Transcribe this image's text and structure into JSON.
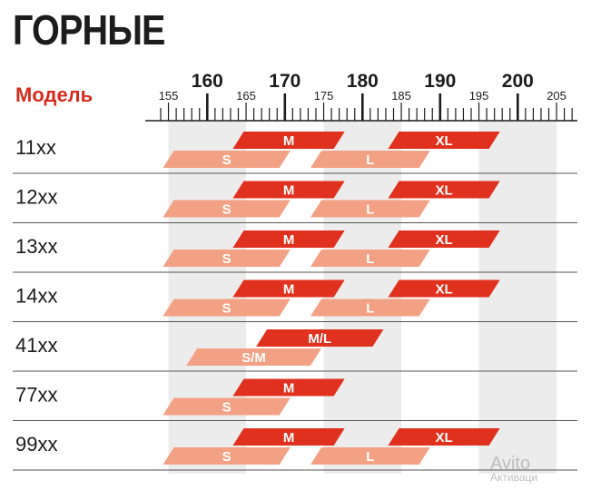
{
  "title": "ГОРНЫЕ",
  "model_header": "Модель",
  "watermark": {
    "brand": "Avito",
    "sub": "Активаци"
  },
  "colors": {
    "primary_bar": "#e0301e",
    "secondary_bar": "#f2a184",
    "band": "#ececec",
    "text": "#1c1c1c",
    "accent": "#d62b1f"
  },
  "chart_data": {
    "type": "range_bar",
    "title": "ГОРНЫЕ",
    "xlabel": "",
    "ylabel": "Модель",
    "xlim": [
      154,
      207
    ],
    "major_ticks": [
      160,
      170,
      180,
      190,
      200
    ],
    "minor_labeled_ticks": [
      155,
      165,
      175,
      185,
      195,
      205
    ],
    "shaded_bands": [
      [
        155,
        165
      ],
      [
        175,
        185
      ],
      [
        195,
        205
      ]
    ],
    "rows": [
      {
        "model": "11xx",
        "sizes": [
          {
            "label": "S",
            "from": 155,
            "to": 170,
            "tier": "low"
          },
          {
            "label": "M",
            "from": 164,
            "to": 177,
            "tier": "high"
          },
          {
            "label": "L",
            "from": 174,
            "to": 188,
            "tier": "low"
          },
          {
            "label": "XL",
            "from": 184,
            "to": 197,
            "tier": "high"
          }
        ]
      },
      {
        "model": "12xx",
        "sizes": [
          {
            "label": "S",
            "from": 155,
            "to": 170,
            "tier": "low"
          },
          {
            "label": "M",
            "from": 164,
            "to": 177,
            "tier": "high"
          },
          {
            "label": "L",
            "from": 174,
            "to": 188,
            "tier": "low"
          },
          {
            "label": "XL",
            "from": 184,
            "to": 197,
            "tier": "high"
          }
        ]
      },
      {
        "model": "13xx",
        "sizes": [
          {
            "label": "S",
            "from": 155,
            "to": 170,
            "tier": "low"
          },
          {
            "label": "M",
            "from": 164,
            "to": 177,
            "tier": "high"
          },
          {
            "label": "L",
            "from": 174,
            "to": 188,
            "tier": "low"
          },
          {
            "label": "XL",
            "from": 184,
            "to": 197,
            "tier": "high"
          }
        ]
      },
      {
        "model": "14xx",
        "sizes": [
          {
            "label": "S",
            "from": 155,
            "to": 170,
            "tier": "low"
          },
          {
            "label": "M",
            "from": 164,
            "to": 177,
            "tier": "high"
          },
          {
            "label": "L",
            "from": 174,
            "to": 188,
            "tier": "low"
          },
          {
            "label": "XL",
            "from": 184,
            "to": 197,
            "tier": "high"
          }
        ]
      },
      {
        "model": "41xx",
        "sizes": [
          {
            "label": "S/M",
            "from": 158,
            "to": 174,
            "tier": "low"
          },
          {
            "label": "M/L",
            "from": 167,
            "to": 182,
            "tier": "high"
          }
        ]
      },
      {
        "model": "77xx",
        "sizes": [
          {
            "label": "S",
            "from": 155,
            "to": 170,
            "tier": "low"
          },
          {
            "label": "M",
            "from": 164,
            "to": 177,
            "tier": "high"
          }
        ]
      },
      {
        "model": "99xx",
        "sizes": [
          {
            "label": "S",
            "from": 155,
            "to": 170,
            "tier": "low"
          },
          {
            "label": "M",
            "from": 164,
            "to": 177,
            "tier": "high"
          },
          {
            "label": "L",
            "from": 174,
            "to": 188,
            "tier": "low"
          },
          {
            "label": "XL",
            "from": 184,
            "to": 197,
            "tier": "high"
          }
        ]
      }
    ]
  }
}
